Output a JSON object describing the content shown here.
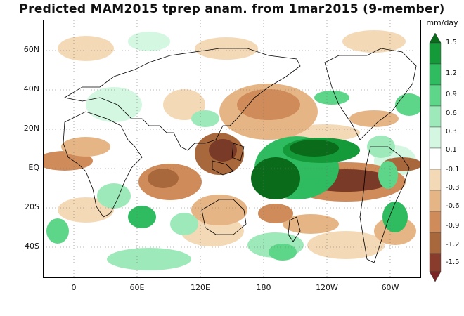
{
  "title": "Predicted MAM2015 tprep anam. from 1mar2015 (9-member)",
  "units": "mm/day",
  "axes": {
    "y_ticks": [
      "60N",
      "40N",
      "20N",
      "EQ",
      "20S",
      "40S"
    ],
    "x_ticks": [
      "0",
      "60E",
      "120E",
      "180",
      "120W",
      "60W"
    ]
  },
  "colorbar": {
    "labels": [
      "1.5",
      "1.2",
      "0.9",
      "0.6",
      "0.3",
      "0.1",
      "-0.1",
      "-0.3",
      "-0.6",
      "-0.9",
      "-1.2",
      "-1.5"
    ],
    "colors": [
      "#0a6b1a",
      "#159a3a",
      "#2fbb5f",
      "#5ed68a",
      "#9ee9b9",
      "#d4f7e1",
      "#ffffff",
      "#f4d9b6",
      "#e6b585",
      "#cf8c5a",
      "#a8683c",
      "#8a3c2c",
      "#7a2626"
    ]
  },
  "colors": {
    "dry_strong": "#7a3a28",
    "dry_mid": "#a8683c",
    "dry_light": "#e6b585",
    "dry_faint": "#f4d9b6",
    "wet_faint": "#d4f7e1",
    "wet_light": "#9ee9b9",
    "wet_mid": "#2fbb5f",
    "wet_strong": "#0a6b1a"
  }
}
